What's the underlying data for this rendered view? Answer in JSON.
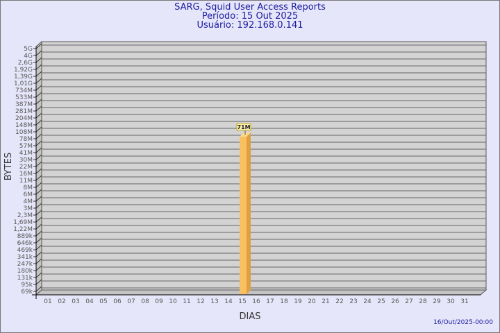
{
  "header": {
    "line1": "SARG, Squid User Access Reports",
    "line2": "Período: 15 Out 2025",
    "line3": "Usuário: 192.168.0.141"
  },
  "footer": {
    "timestamp": "16/Out/2025-00:00"
  },
  "colors": {
    "background": "#e6e6fa",
    "title": "#1a1aa0",
    "wall": "#d3d3d3",
    "bar": "#f8c060",
    "bar_side": "#e0a040",
    "label_bg": "#f8f0b0"
  },
  "chart_data": {
    "type": "bar",
    "title": "SARG, Squid User Access Reports",
    "xlabel": "DIAS",
    "ylabel": "BYTES",
    "yscale": "log",
    "grid": true,
    "yticks": [
      "5G",
      "4G",
      "2,6G",
      "1,92G",
      "1,39G",
      "1,01G",
      "734M",
      "533M",
      "387M",
      "281M",
      "204M",
      "148M",
      "108M",
      "78M",
      "57M",
      "41M",
      "30M",
      "22M",
      "16M",
      "11M",
      "8M",
      "6M",
      "4M",
      "3M",
      "2,3M",
      "1,69M",
      "1,22M",
      "889k",
      "646k",
      "469k",
      "341k",
      "247k",
      "180k",
      "131k",
      "95k",
      "69k"
    ],
    "categories": [
      "01",
      "02",
      "03",
      "04",
      "05",
      "06",
      "07",
      "08",
      "09",
      "10",
      "11",
      "12",
      "13",
      "14",
      "15",
      "16",
      "17",
      "18",
      "19",
      "20",
      "21",
      "22",
      "23",
      "24",
      "25",
      "26",
      "27",
      "28",
      "29",
      "30",
      "31"
    ],
    "bars": [
      {
        "category": "15",
        "value": "71M",
        "label": "71M"
      }
    ]
  }
}
